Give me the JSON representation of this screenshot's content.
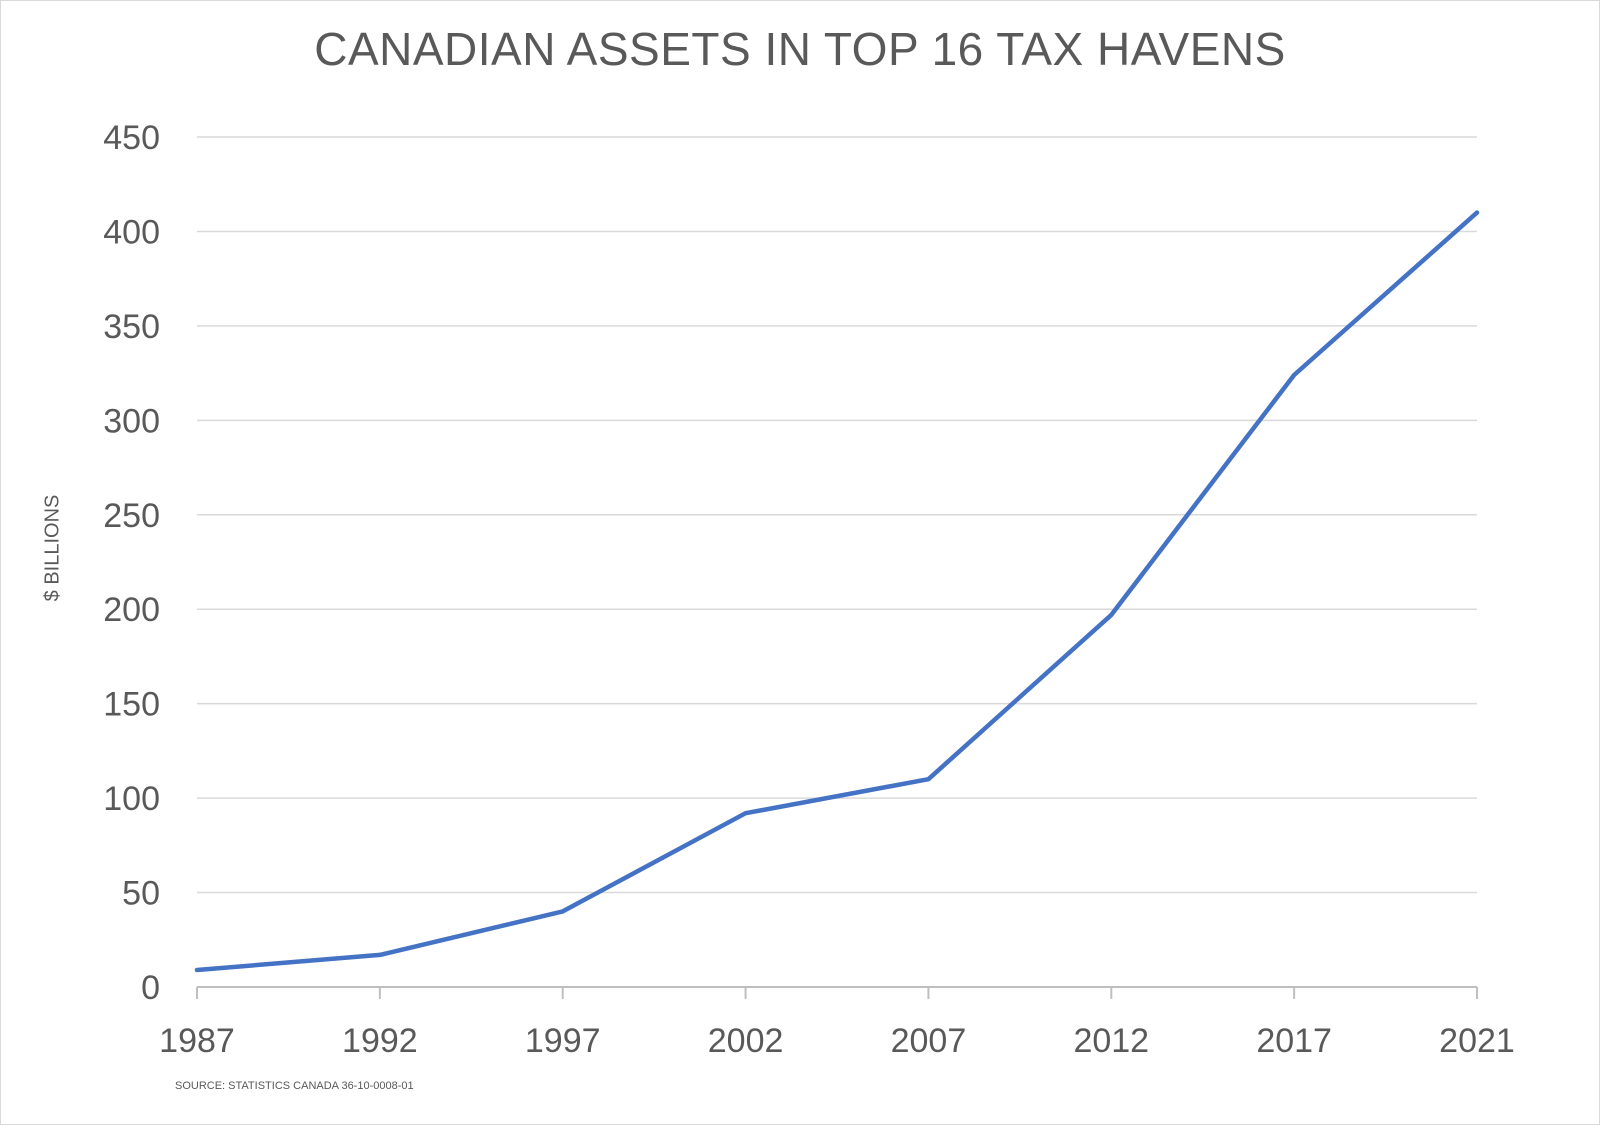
{
  "chart_data": {
    "type": "line",
    "title": "CANADIAN ASSETS IN TOP 16 TAX HAVENS",
    "xlabel": "",
    "ylabel": "$ BILLIONS",
    "source": "SOURCE: STATISTICS CANADA 36-10-0008-01",
    "categories": [
      "1987",
      "1992",
      "1997",
      "2002",
      "2007",
      "2012",
      "2017",
      "2021"
    ],
    "series": [
      {
        "values": [
          9,
          17,
          40,
          92,
          110,
          197,
          324,
          410
        ]
      }
    ],
    "ylim": [
      0,
      450
    ],
    "yticks": [
      0,
      50,
      100,
      150,
      200,
      250,
      300,
      350,
      400,
      450
    ],
    "grid": true,
    "colors": {
      "line": "#4472c4",
      "grid": "#d9d9d9",
      "axis": "#bfbfbf",
      "text": "#595959"
    }
  }
}
